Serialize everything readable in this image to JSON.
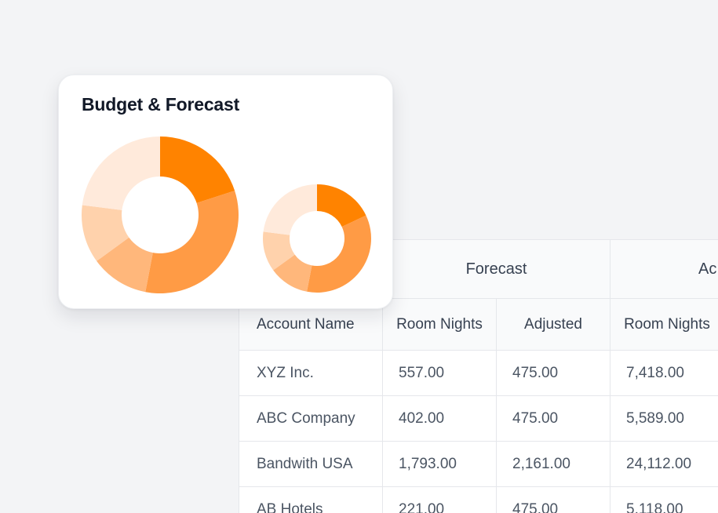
{
  "card": {
    "title": "Budget & Forecast"
  },
  "chart_data": [
    {
      "type": "pie",
      "style": "donut",
      "slices": [
        {
          "value": 20,
          "color": "#ff8300"
        },
        {
          "value": 33,
          "color": "#ff9b45"
        },
        {
          "value": 12,
          "color": "#ffb77b"
        },
        {
          "value": 12,
          "color": "#ffd2ac"
        },
        {
          "value": 23,
          "color": "#ffeadb"
        }
      ]
    },
    {
      "type": "pie",
      "style": "donut",
      "slices": [
        {
          "value": 18,
          "color": "#ff8300"
        },
        {
          "value": 35,
          "color": "#ff9b45"
        },
        {
          "value": 12,
          "color": "#ffb77b"
        },
        {
          "value": 12,
          "color": "#ffd2ac"
        },
        {
          "value": 23,
          "color": "#ffeadb"
        }
      ]
    }
  ],
  "table": {
    "groups": [
      "Forecast",
      "Ac"
    ],
    "columns": [
      "Account Name",
      "Room Nights",
      "Adjusted",
      "Room Nights"
    ],
    "rows": [
      [
        "XYZ Inc.",
        "557.00",
        "475.00",
        "7,418.00"
      ],
      [
        "ABC Company",
        "402.00",
        "475.00",
        "5,589.00"
      ],
      [
        "Bandwith USA",
        "1,793.00",
        "2,161.00",
        "24,112.00"
      ],
      [
        "AB Hotels",
        "221.00",
        "475.00",
        "5,118.00"
      ]
    ]
  }
}
